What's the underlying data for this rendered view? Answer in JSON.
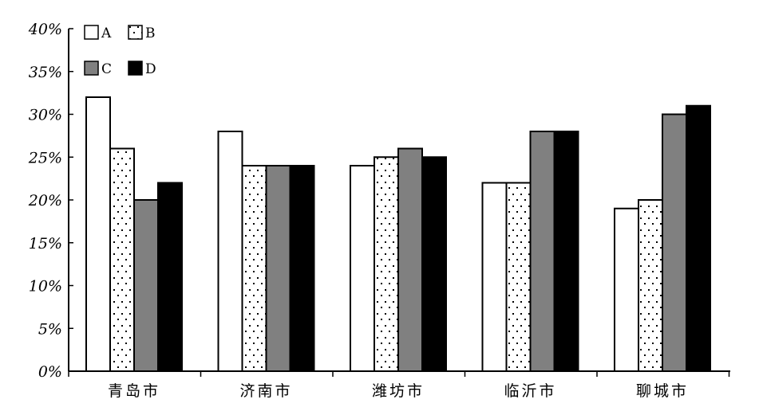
{
  "chart_data": {
    "type": "bar",
    "categories": [
      "青岛市",
      "济南市",
      "潍坊市",
      "临沂市",
      "聊城市"
    ],
    "series": [
      {
        "name": "A",
        "values": [
          32,
          28,
          24,
          22,
          19
        ],
        "fill": "white"
      },
      {
        "name": "B",
        "values": [
          26,
          24,
          25,
          22,
          20
        ],
        "fill": "dots"
      },
      {
        "name": "C",
        "values": [
          20,
          24,
          26,
          28,
          30
        ],
        "fill": "#808080"
      },
      {
        "name": "D",
        "values": [
          22,
          24,
          25,
          28,
          31
        ],
        "fill": "#000000"
      }
    ],
    "ylim": [
      0,
      40
    ],
    "yticks": [
      0,
      5,
      10,
      15,
      20,
      25,
      30,
      35,
      40
    ],
    "ytick_labels": [
      "0%",
      "5%",
      "10%",
      "15%",
      "20%",
      "25%",
      "30%",
      "35%",
      "40%"
    ],
    "legend_position": "top-left",
    "grid": false
  }
}
